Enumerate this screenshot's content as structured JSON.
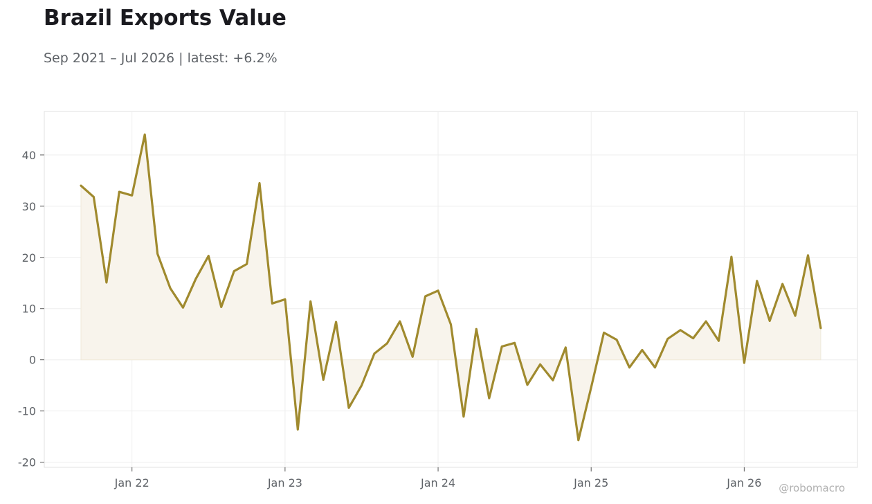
{
  "chart_data": {
    "type": "area",
    "title": "Brazil Exports Value",
    "subtitle": "Sep 2021 – Jul 2026 | latest: +6.2%",
    "xlabel": "",
    "ylabel": "",
    "ylim": [
      -21,
      48.5
    ],
    "yticks": [
      -20,
      -10,
      0,
      10,
      20,
      30,
      40
    ],
    "xticks": [
      {
        "label": "Jan 22",
        "date": "2022-01"
      },
      {
        "label": "Jan 23",
        "date": "2023-01"
      },
      {
        "label": "Jan 24",
        "date": "2024-01"
      },
      {
        "label": "Jan 25",
        "date": "2025-01"
      },
      {
        "label": "Jan 26",
        "date": "2026-01"
      }
    ],
    "grid": true,
    "line_color": "#a08a2e",
    "fill_color": "#f8f4ec",
    "x": [
      "2021-09",
      "2021-10",
      "2021-11",
      "2021-12",
      "2022-01",
      "2022-02",
      "2022-03",
      "2022-04",
      "2022-05",
      "2022-06",
      "2022-07",
      "2022-08",
      "2022-09",
      "2022-10",
      "2022-11",
      "2022-12",
      "2023-01",
      "2023-02",
      "2023-03",
      "2023-04",
      "2023-05",
      "2023-06",
      "2023-07",
      "2023-08",
      "2023-09",
      "2023-10",
      "2023-11",
      "2023-12",
      "2024-01",
      "2024-02",
      "2024-03",
      "2024-04",
      "2024-05",
      "2024-06",
      "2024-07",
      "2024-08",
      "2024-09",
      "2024-10",
      "2024-11",
      "2024-12",
      "2025-01",
      "2025-02",
      "2025-03",
      "2025-04",
      "2025-05",
      "2025-06",
      "2025-07",
      "2025-08",
      "2025-09",
      "2025-10",
      "2025-11",
      "2025-12",
      "2026-01",
      "2026-02",
      "2026-03",
      "2026-04",
      "2026-05",
      "2026-06",
      "2026-07"
    ],
    "values": [
      34,
      31.8,
      15.1,
      32.8,
      32.1,
      44,
      20.7,
      14,
      10.2,
      15.8,
      20.3,
      10.3,
      17.3,
      18.7,
      34.5,
      11,
      11.8,
      -13.6,
      11.4,
      -3.9,
      7.4,
      -9.4,
      -5,
      1.2,
      3.2,
      7.5,
      0.6,
      12.4,
      13.5,
      6.9,
      -11.1,
      6,
      -7.5,
      2.6,
      3.3,
      -4.9,
      -0.9,
      -4,
      2.4,
      -15.7,
      -5.4,
      5.3,
      3.9,
      -1.5,
      1.9,
      -1.5,
      4.1,
      5.8,
      4.2,
      7.5,
      3.7,
      20.1,
      -0.6,
      15.4,
      7.6,
      14.8,
      8.6,
      20.4,
      6.2
    ]
  },
  "credit": "@robomacro"
}
